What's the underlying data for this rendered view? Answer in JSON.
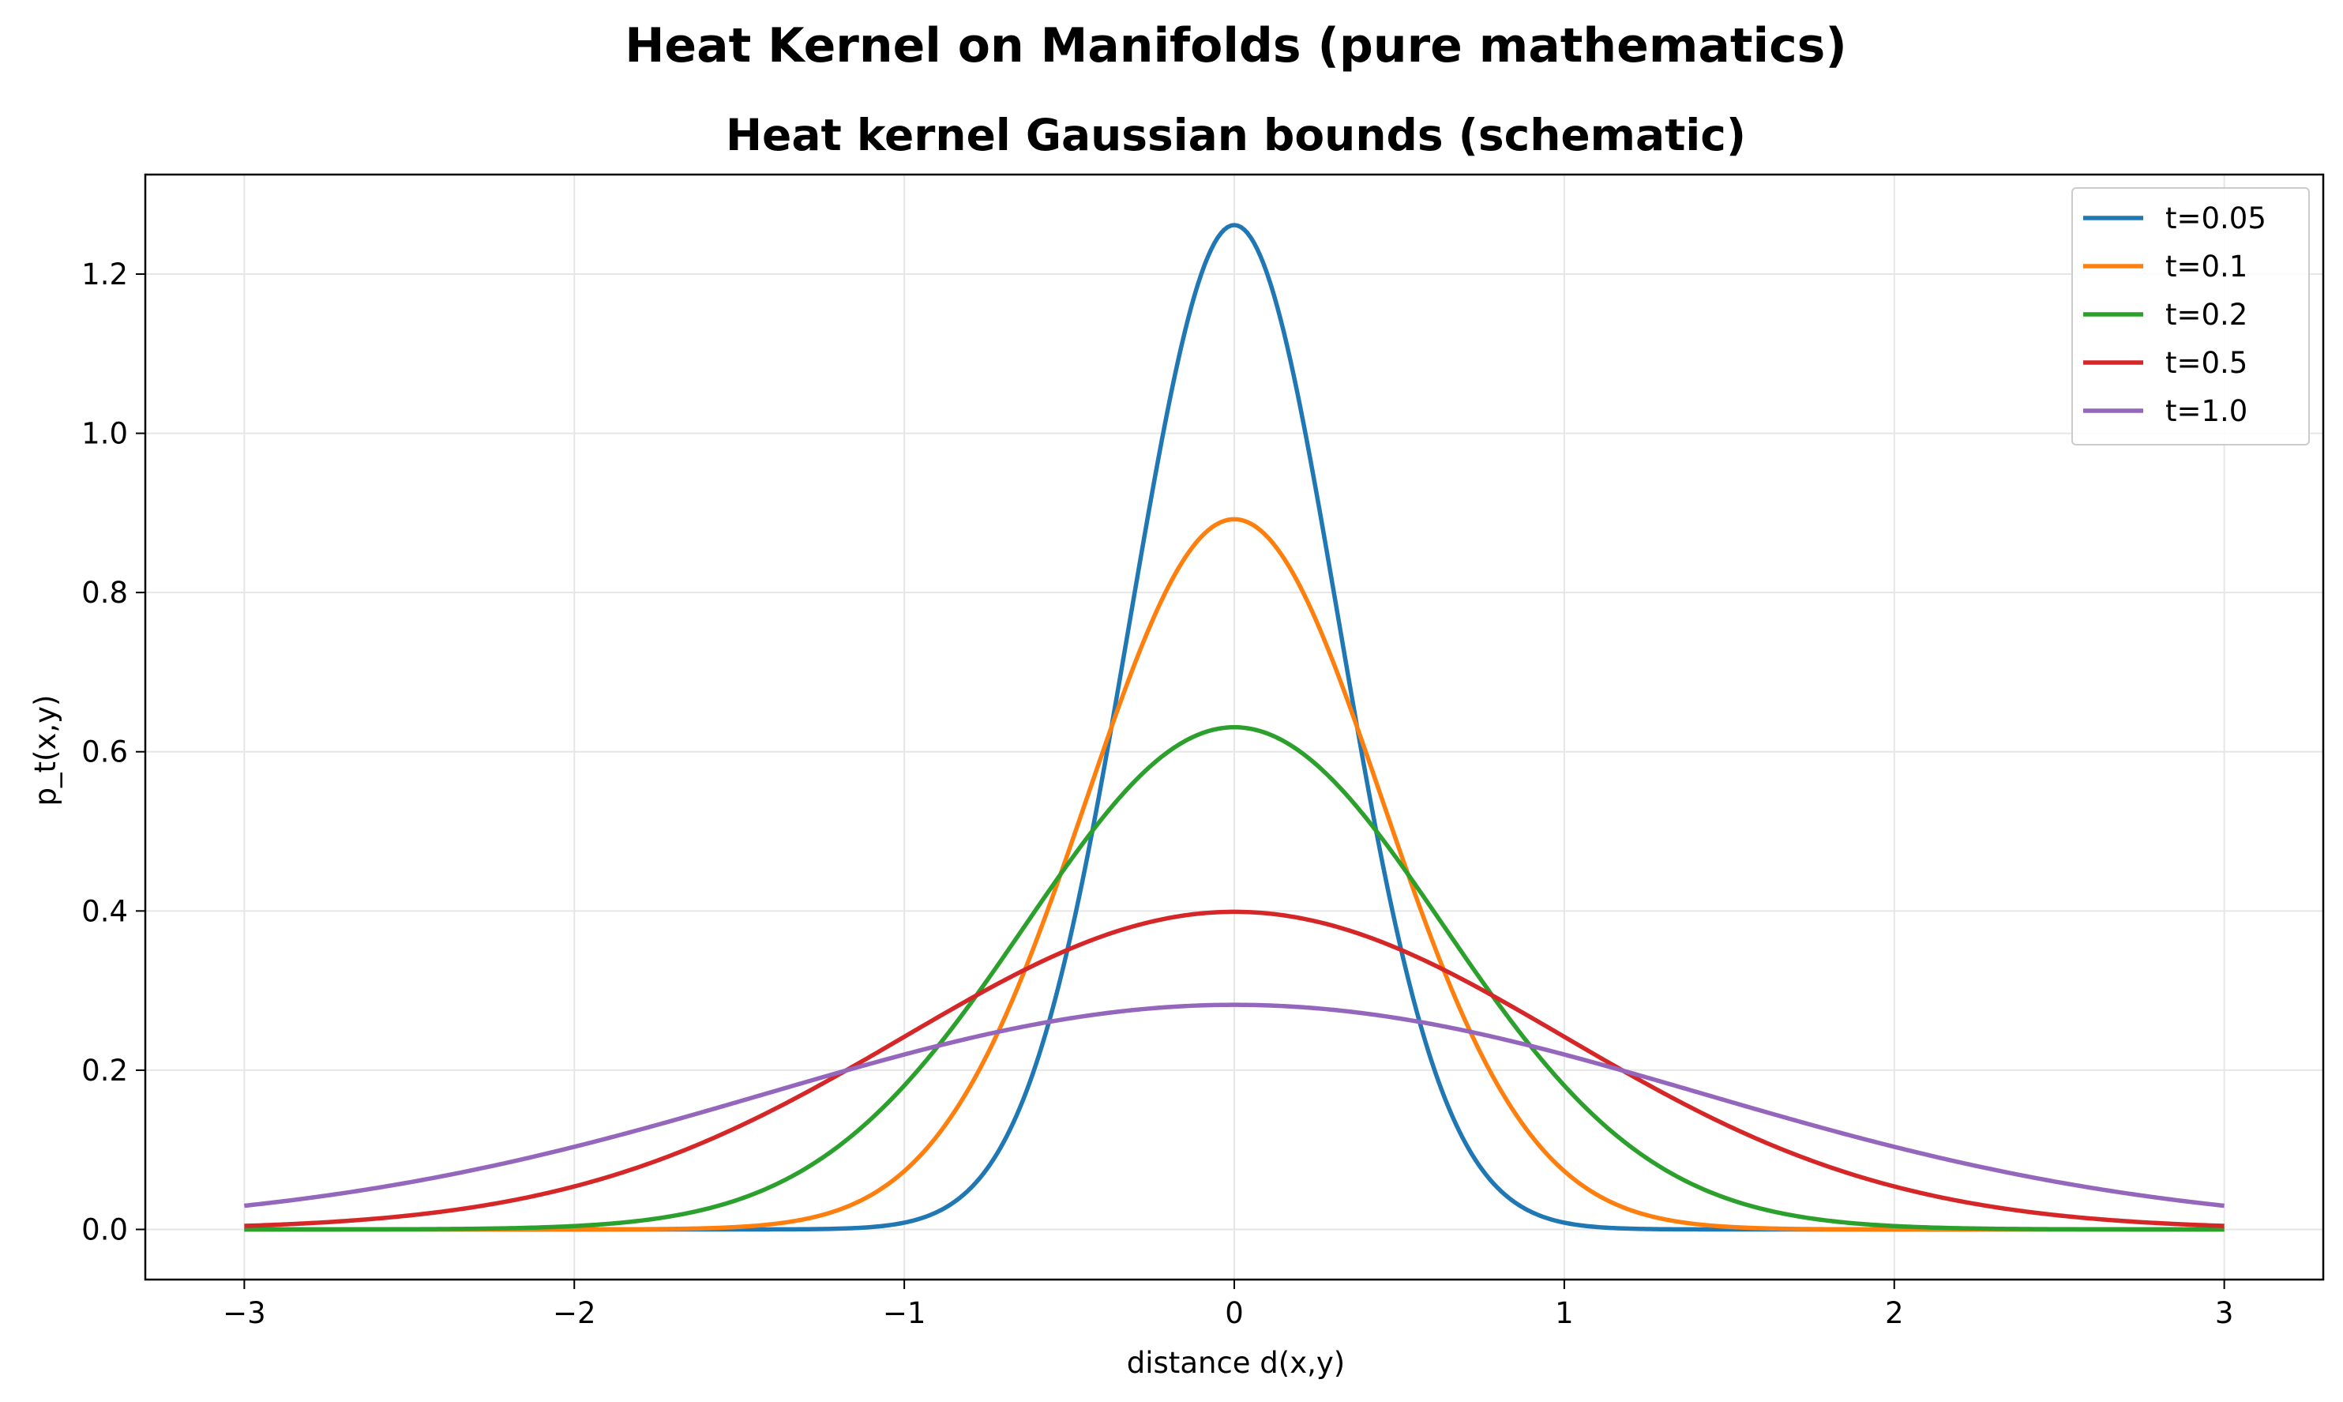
{
  "figure": {
    "suptitle": "Heat Kernel on Manifolds (pure mathematics)"
  },
  "chart_data": {
    "type": "line",
    "title": "Heat kernel Gaussian bounds (schematic)",
    "xlabel": "distance d(x,y)",
    "ylabel": "p_t(x,y)",
    "xlim": [
      -3.3,
      3.3
    ],
    "ylim": [
      -0.063,
      1.325
    ],
    "xticks": [
      -3,
      -2,
      -1,
      0,
      1,
      2,
      3
    ],
    "xtick_labels": [
      "−3",
      "−2",
      "−1",
      "0",
      "1",
      "2",
      "3"
    ],
    "yticks": [
      0.0,
      0.2,
      0.4,
      0.6,
      0.8,
      1.0,
      1.2
    ],
    "ytick_labels": [
      "0.0",
      "0.2",
      "0.4",
      "0.6",
      "0.8",
      "1.0",
      "1.2"
    ],
    "grid": true,
    "legend_position": "top-right",
    "x_range": [
      -3,
      3
    ],
    "series": [
      {
        "name": "t=0.05",
        "t": 0.05,
        "color": "#1f77b4"
      },
      {
        "name": "t=0.1",
        "t": 0.1,
        "color": "#ff7f0e"
      },
      {
        "name": "t=0.2",
        "t": 0.2,
        "color": "#2ca02c"
      },
      {
        "name": "t=0.5",
        "t": 0.5,
        "color": "#d62728"
      },
      {
        "name": "t=1.0",
        "t": 1.0,
        "color": "#9467bd"
      }
    ]
  }
}
